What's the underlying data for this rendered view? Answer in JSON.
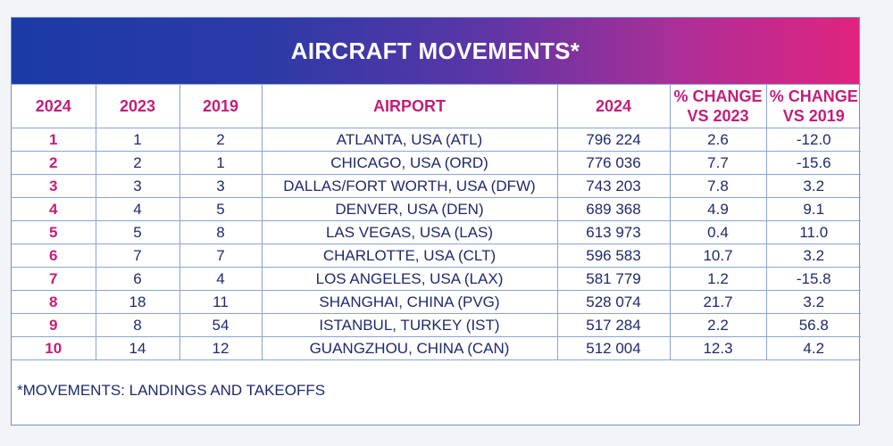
{
  "chart_data": {
    "type": "table",
    "title": "AIRCRAFT MOVEMENTS*",
    "columns": [
      "2024",
      "2023",
      "2019",
      "AIRPORT",
      "2024",
      "% CHANGE VS 2023",
      "% CHANGE VS 2019"
    ],
    "header_lines": [
      [
        "2024"
      ],
      [
        "2023"
      ],
      [
        "2019"
      ],
      [
        "AIRPORT"
      ],
      [
        "2024"
      ],
      [
        "% CHANGE",
        "VS 2023"
      ],
      [
        "% CHANGE",
        "VS 2019"
      ]
    ],
    "rows": [
      [
        "1",
        "1",
        "2",
        "ATLANTA, USA (ATL)",
        "796 224",
        "2.6",
        "-12.0"
      ],
      [
        "2",
        "2",
        "1",
        "CHICAGO, USA (ORD)",
        "776 036",
        "7.7",
        "-15.6"
      ],
      [
        "3",
        "3",
        "3",
        "DALLAS/FORT WORTH, USA (DFW)",
        "743 203",
        "7.8",
        "3.2"
      ],
      [
        "4",
        "4",
        "5",
        "DENVER, USA (DEN)",
        "689 368",
        "4.9",
        "9.1"
      ],
      [
        "5",
        "5",
        "8",
        "LAS VEGAS, USA (LAS)",
        "613 973",
        "0.4",
        "11.0"
      ],
      [
        "6",
        "7",
        "7",
        "CHARLOTTE, USA (CLT)",
        "596 583",
        "10.7",
        "3.2"
      ],
      [
        "7",
        "6",
        "4",
        "LOS ANGELES, USA (LAX)",
        "581 779",
        "1.2",
        "-15.8"
      ],
      [
        "8",
        "18",
        "11",
        "SHANGHAI, CHINA (PVG)",
        "528 074",
        "21.7",
        "3.2"
      ],
      [
        "9",
        "8",
        "54",
        "ISTANBUL, TURKEY (IST)",
        "517 284",
        "2.2",
        "56.8"
      ],
      [
        "10",
        "14",
        "12",
        "GUANGZHOU, CHINA (CAN)",
        "512 004",
        "12.3",
        "4.2"
      ]
    ],
    "footnote": "*MOVEMENTS: LANDINGS AND TAKEOFFS"
  },
  "colors": {
    "banner_start": "#1b3aa6",
    "banner_end": "#e0237e",
    "header_text": "#c41e78",
    "body_text": "#1e2a6b",
    "grid_line": "#8aa3d4"
  }
}
